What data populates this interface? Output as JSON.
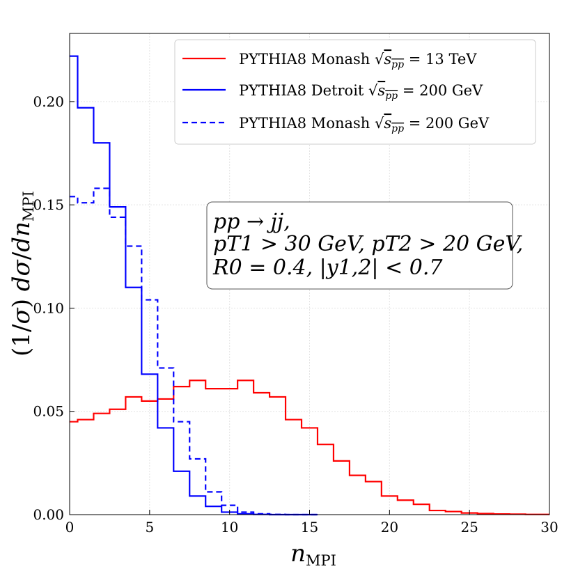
{
  "chart_data": {
    "type": "step",
    "xlabel": "n_MPI",
    "ylabel": "(1/σ) dσ/dn_MPI",
    "xlim": [
      0,
      30
    ],
    "ylim": [
      0,
      0.233
    ],
    "xticks": [
      0,
      5,
      10,
      15,
      20,
      25,
      30
    ],
    "xtick_labels": [
      "0",
      "5",
      "10",
      "15",
      "20",
      "25",
      "30"
    ],
    "yticks": [
      0.0,
      0.05,
      0.1,
      0.15,
      0.2
    ],
    "ytick_labels": [
      "0.00",
      "0.05",
      "0.10",
      "0.15",
      "0.20"
    ],
    "grid": true,
    "legend_position": "top-right",
    "series": [
      {
        "name": "PYTHIA8 Monash √s_pp = 13 TeV",
        "color": "#ff0000",
        "linestyle": "solid",
        "x": [
          0,
          1,
          2,
          3,
          4,
          5,
          6,
          7,
          8,
          9,
          10,
          11,
          12,
          13,
          14,
          15,
          16,
          17,
          18,
          19,
          20,
          21,
          22,
          23,
          24,
          25,
          26,
          27,
          28,
          29,
          30
        ],
        "values": [
          0.045,
          0.046,
          0.049,
          0.051,
          0.057,
          0.055,
          0.056,
          0.062,
          0.065,
          0.061,
          0.061,
          0.065,
          0.059,
          0.057,
          0.046,
          0.042,
          0.034,
          0.026,
          0.019,
          0.016,
          0.009,
          0.007,
          0.005,
          0.002,
          0.0015,
          0.0008,
          0.0005,
          0.0003,
          0.0002,
          0.0001,
          0.0001
        ]
      },
      {
        "name": "PYTHIA8 Detroit √s_pp = 200 GeV",
        "color": "#0000ff",
        "linestyle": "solid",
        "x": [
          0,
          1,
          2,
          3,
          4,
          5,
          6,
          7,
          8,
          9,
          10,
          11,
          12,
          13,
          14,
          15
        ],
        "values": [
          0.222,
          0.197,
          0.18,
          0.149,
          0.11,
          0.068,
          0.042,
          0.021,
          0.009,
          0.004,
          0.0012,
          0.0004,
          0.0001,
          0.0,
          0.0,
          0.0
        ]
      },
      {
        "name": "PYTHIA8 Monash √s_pp = 200 GeV",
        "color": "#0000ff",
        "linestyle": "dashed",
        "x": [
          0,
          1,
          2,
          3,
          4,
          5,
          6,
          7,
          8,
          9,
          10,
          11,
          12,
          13,
          14,
          15
        ],
        "values": [
          0.154,
          0.151,
          0.158,
          0.144,
          0.13,
          0.104,
          0.071,
          0.045,
          0.027,
          0.011,
          0.0045,
          0.0012,
          0.0004,
          0.0001,
          0.0,
          0.0
        ]
      }
    ],
    "legend": [
      {
        "label": "PYTHIA8 Monash",
        "energy": "13 TeV"
      },
      {
        "label": "PYTHIA8 Detroit",
        "energy": "200 GeV"
      },
      {
        "label": "PYTHIA8 Monash",
        "energy": "200 GeV"
      }
    ],
    "annotation": {
      "line1": "pp → jj,",
      "line2": "pT1 > 30 GeV,  pT2 > 20 GeV,",
      "line3": "R0 = 0.4, |y1,2| < 0.7"
    }
  }
}
